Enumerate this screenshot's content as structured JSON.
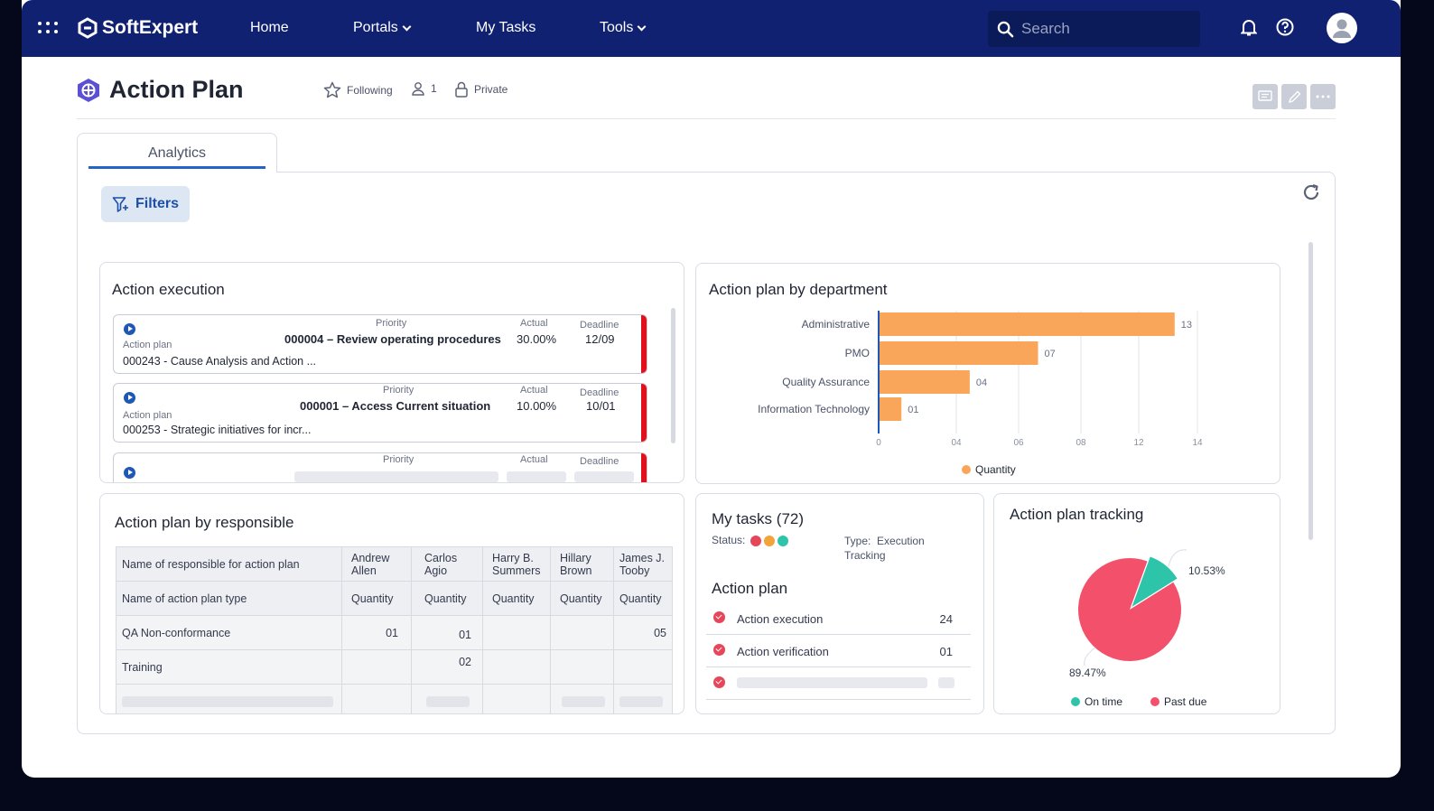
{
  "app": {
    "brand": "SoftExpert"
  },
  "nav": {
    "home": "Home",
    "portals": "Portals",
    "my_tasks": "My Tasks",
    "tools": "Tools",
    "search_placeholder": "Search"
  },
  "page": {
    "title": "Action Plan",
    "following": "Following",
    "members_count": "1",
    "privacy": "Private"
  },
  "tabs": {
    "analytics": "Analytics"
  },
  "filters_label": "Filters",
  "action_execution": {
    "title": "Action execution",
    "items": [
      {
        "priority_label": "Priority",
        "name": "000004 – Review operating procedures",
        "actual_label": "Actual",
        "actual": "30.00%",
        "deadline_label": "Deadline",
        "deadline": "12/09",
        "type": "Action plan",
        "plan": "000243 - Cause Analysis and Action ..."
      },
      {
        "priority_label": "Priority",
        "name": "000001 – Access Current situation",
        "actual_label": "Actual",
        "actual": "10.00%",
        "deadline_label": "Deadline",
        "deadline": "10/01",
        "type": "Action plan",
        "plan": "000253 - Strategic initiatives for incr..."
      },
      {
        "priority_label": "Priority",
        "actual_label": "Actual",
        "deadline_label": "Deadline"
      }
    ]
  },
  "department_chart": {
    "title": "Action plan by department",
    "legend": "Quantity",
    "color": "#f9a55a"
  },
  "chart_data": {
    "type": "bar",
    "orientation": "horizontal",
    "title": "Action plan by department",
    "categories": [
      "Administrative",
      "PMO",
      "Quality Assurance",
      "Information Technology"
    ],
    "values": [
      13,
      7,
      4,
      1
    ],
    "value_labels": [
      "13",
      "07",
      "04",
      "01"
    ],
    "x_ticks": [
      "0",
      "04",
      "06",
      "08",
      "12",
      "14"
    ],
    "xlim": [
      0,
      14
    ],
    "legend": "Quantity"
  },
  "responsible_table": {
    "title": "Action plan by responsible",
    "row_header_1": "Name of responsible for action plan",
    "row_header_2": "Name of action plan type",
    "people": [
      "Andrew Allen",
      "Carlos Agio",
      "Harry B. Summers",
      "Hillary Brown",
      "James J. Tooby"
    ],
    "quantity_label": "Quantity",
    "rows": [
      {
        "name": "QA Non-conformance",
        "values": [
          "01",
          "01",
          "",
          "",
          "05"
        ]
      },
      {
        "name": "Training",
        "values": [
          "",
          "02",
          "",
          "",
          ""
        ]
      }
    ]
  },
  "my_tasks": {
    "title": "My tasks (72)",
    "status_label": "Status:",
    "type_label": "Type:",
    "type_value": "Execution Tracking",
    "section": "Action plan",
    "rows": [
      {
        "label": "Action execution",
        "count": "24"
      },
      {
        "label": "Action verification",
        "count": "01"
      }
    ]
  },
  "tracking": {
    "title": "Action plan tracking",
    "on_time_pct": "10.53%",
    "past_due_pct": "89.47%",
    "on_time_label": "On time",
    "past_due_label": "Past due",
    "on_time_value": 10.53,
    "past_due_value": 89.47,
    "on_time_color": "#2ec4aa",
    "past_due_color": "#f2506b"
  }
}
